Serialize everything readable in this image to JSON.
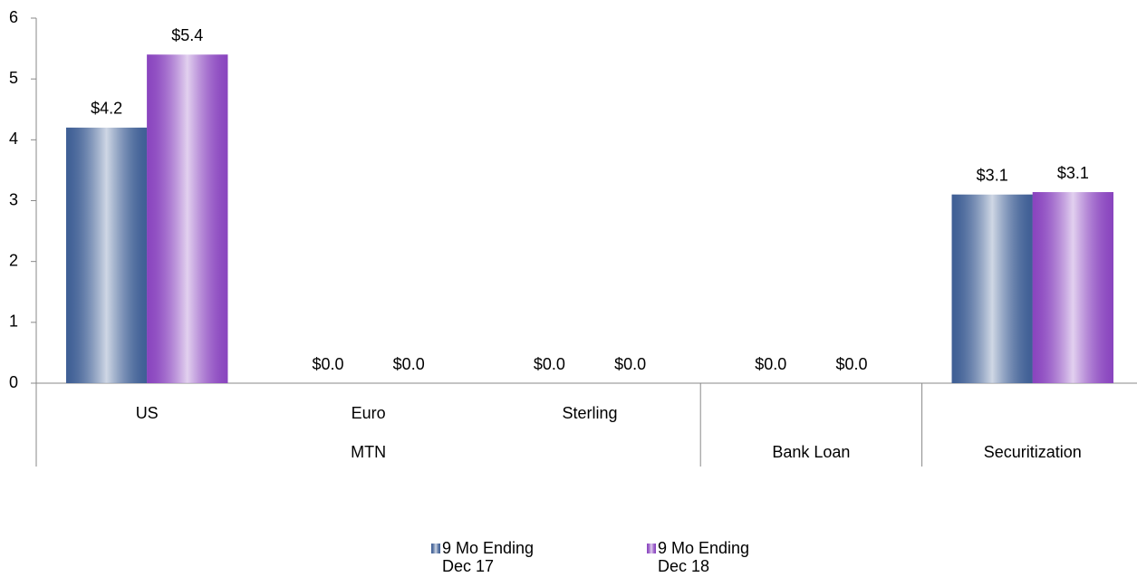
{
  "chart_data": {
    "type": "bar",
    "categories": [
      "US",
      "Euro",
      "Sterling",
      null,
      null
    ],
    "groups": [
      {
        "name": "MTN",
        "size": 3
      },
      {
        "name": "Bank Loan",
        "size": 1
      },
      {
        "name": "Securitization",
        "size": 1
      }
    ],
    "series": [
      {
        "name": "9 Mo Ending Dec 17",
        "color": "#3f5f95",
        "values": [
          4.2,
          0,
          0,
          0,
          3.1
        ],
        "value_labels": [
          "$4.2",
          "$0.0",
          "$0.0",
          "$0.0",
          "$3.1"
        ]
      },
      {
        "name": "9 Mo Ending Dec 18",
        "color": "#8a45bf",
        "values": [
          5.4,
          0,
          0,
          0,
          3.14
        ],
        "value_labels": [
          "$5.4",
          "$0.0",
          "$0.0",
          "$0.0",
          "$3.1"
        ]
      }
    ],
    "ylim": [
      0,
      6
    ],
    "yticks": [
      0,
      1,
      2,
      3,
      4,
      5,
      6
    ],
    "legend": "bottom"
  }
}
